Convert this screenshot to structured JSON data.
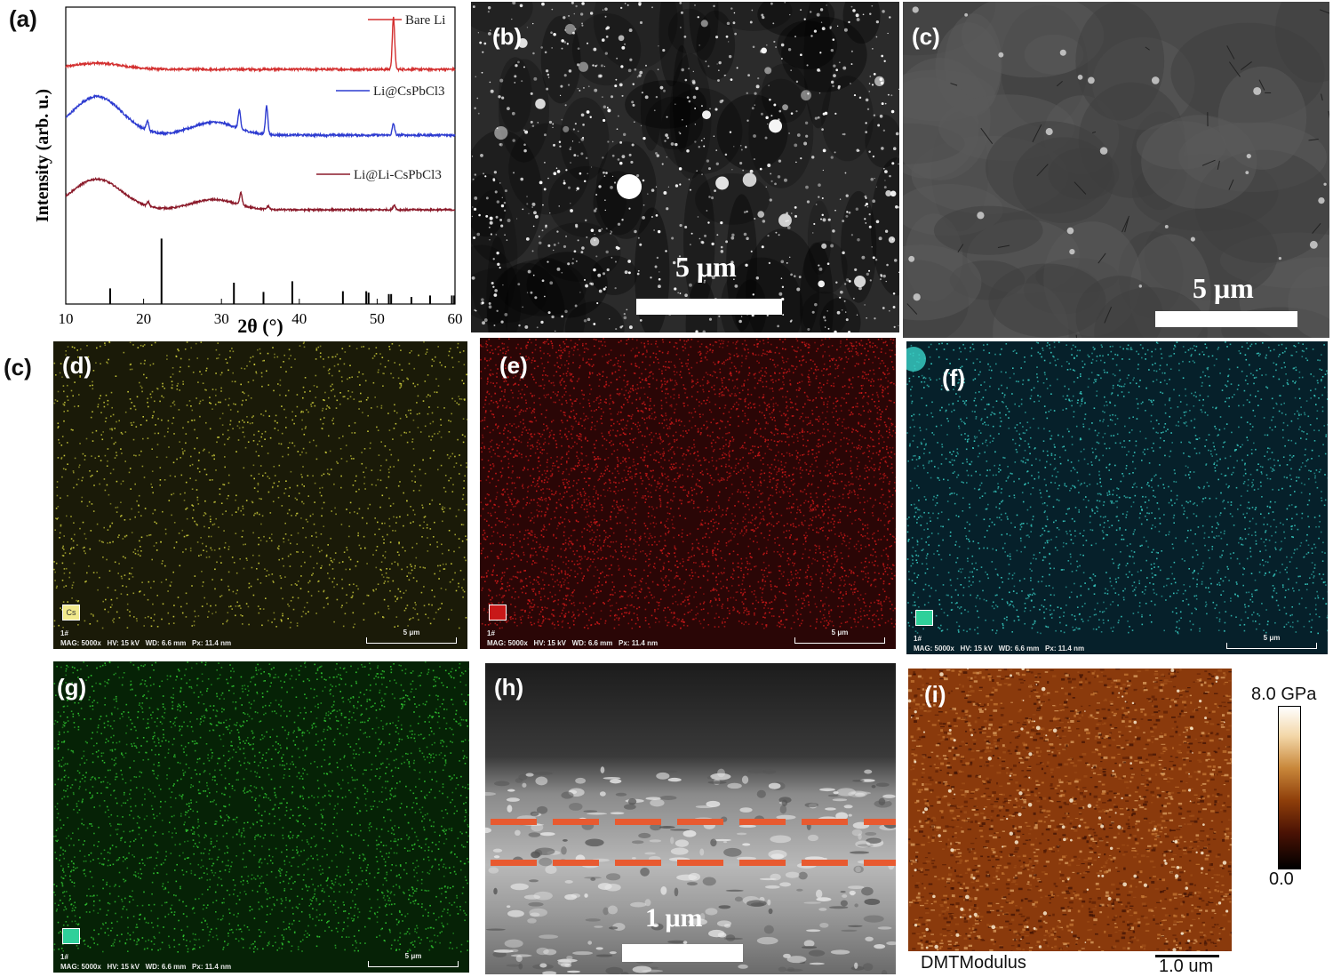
{
  "panels": {
    "a": {
      "label": "(a)"
    },
    "b": {
      "label": "(b)",
      "scale": "5 μm"
    },
    "c": {
      "label": "(c)",
      "scale": "5 μm"
    },
    "c2": {
      "label": "(c)"
    },
    "d": {
      "label": "(d)",
      "chip": "Cs",
      "id": "1#",
      "meta": "MAG: 5000x   HV: 15 kV   WD: 6.6 mm   Px: 11.4 nm",
      "scale": "5 μm",
      "color": "#c9c93a"
    },
    "e": {
      "label": "(e)",
      "chip": "",
      "id": "1#",
      "meta": "MAG: 5000x   HV: 15 kV   WD: 6.6 mm   Px: 11.4 nm",
      "scale": "5 μm",
      "color": "#c81818"
    },
    "f": {
      "label": "(f)",
      "chip": "",
      "id": "1#",
      "meta": "MAG: 5000x   HV: 15 kV   WD: 6.6 mm   Px: 11.4 nm",
      "scale": "5 μm",
      "color": "#36c9c0"
    },
    "g": {
      "label": "(g)",
      "chip": "",
      "id": "1#",
      "meta": "MAG: 5000x   HV: 15 kV   WD: 6.6 mm   Px: 11.4 nm",
      "scale": "5 μm",
      "color": "#2fc22f"
    },
    "h": {
      "label": "(h)",
      "scale": "1 μm"
    },
    "i": {
      "label": "(i)",
      "cbar_max": "8.0 GPa",
      "cbar_min": "0.0",
      "channel": "DMTModulus",
      "scale": "1.0 um"
    }
  },
  "chart_data": {
    "type": "line",
    "xlabel": "2θ (°)",
    "ylabel": "Intensity (arb. u.)",
    "xlim": [
      10,
      60
    ],
    "x_ticks": [
      10,
      20,
      30,
      40,
      50,
      60
    ],
    "series": [
      {
        "name": "Bare Li",
        "color": "#d32f2f",
        "peaks": [
          [
            52.1,
            1.0
          ]
        ],
        "hump": [
          14,
          0.12
        ]
      },
      {
        "name": "Li@CsPbCl3",
        "color": "#2d3bd0",
        "peaks": [
          [
            20.5,
            0.18
          ],
          [
            32.3,
            0.35
          ],
          [
            35.8,
            0.55
          ],
          [
            52.1,
            0.22
          ]
        ],
        "hump": [
          14,
          0.75
        ]
      },
      {
        "name": "Li@Li-CsPbCl3",
        "color": "#8b1a2a",
        "peaks": [
          [
            20.6,
            0.1
          ],
          [
            32.5,
            0.3
          ],
          [
            36.0,
            0.08
          ],
          [
            52.2,
            0.12
          ]
        ],
        "hump": [
          14,
          0.75
        ]
      }
    ],
    "reference_sticks": [
      [
        15.7,
        0.22
      ],
      [
        22.3,
        0.92
      ],
      [
        31.6,
        0.3
      ],
      [
        35.4,
        0.17
      ],
      [
        39.1,
        0.32
      ],
      [
        45.6,
        0.18
      ],
      [
        48.6,
        0.18
      ],
      [
        48.9,
        0.16
      ],
      [
        51.5,
        0.14
      ],
      [
        51.8,
        0.14
      ],
      [
        54.4,
        0.1
      ],
      [
        56.8,
        0.12
      ],
      [
        59.6,
        0.12
      ],
      [
        59.9,
        0.12
      ]
    ]
  }
}
